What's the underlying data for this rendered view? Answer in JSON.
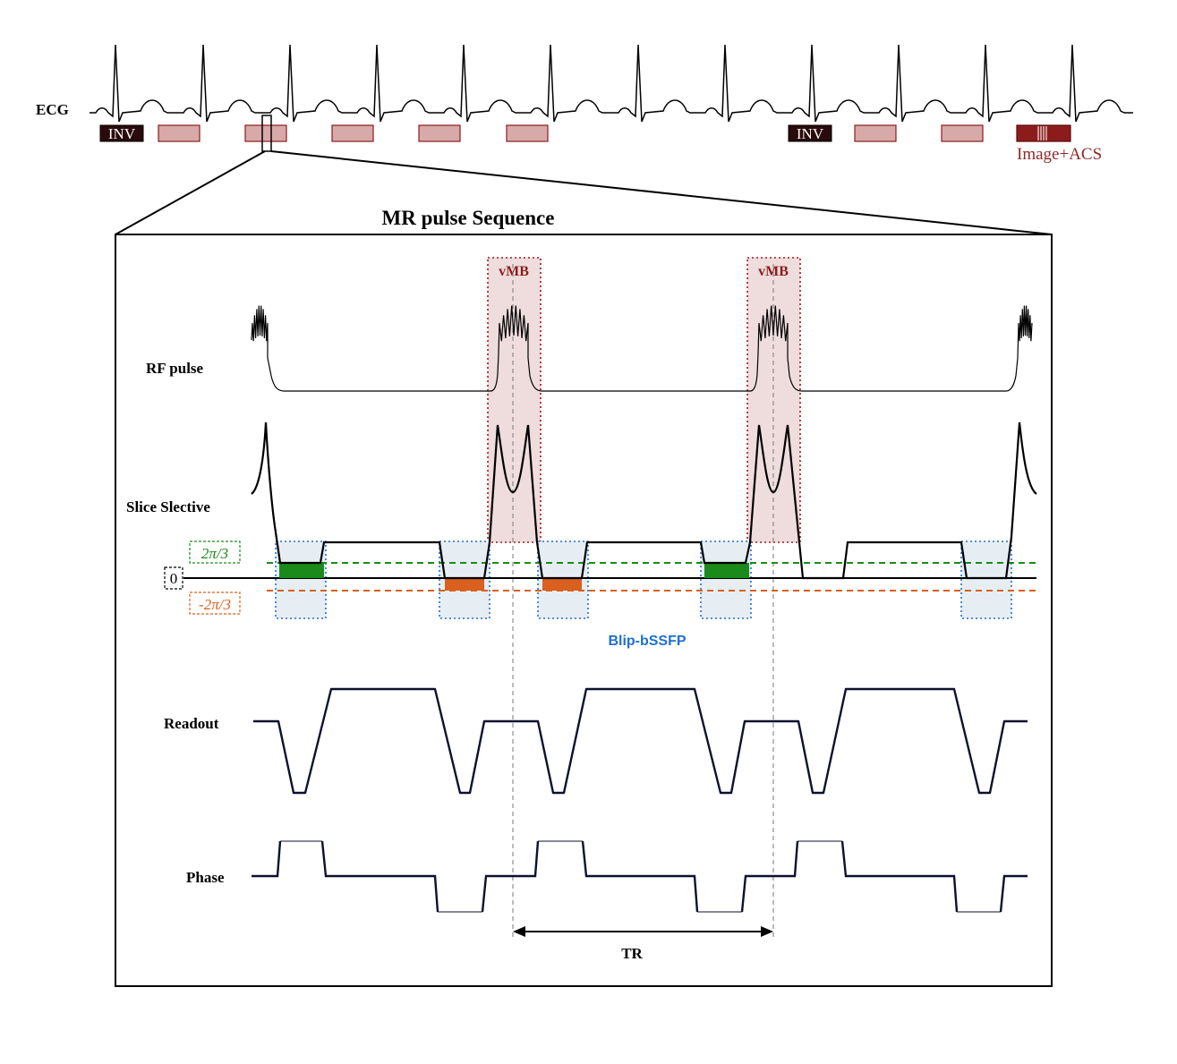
{
  "ecg": {
    "label": "ECG",
    "inv_label": "INV",
    "image_acs_label": "Image+ACS"
  },
  "sequence": {
    "title": "MR pulse Sequence",
    "rows": {
      "rf": "RF pulse",
      "slice": "Slice Slective",
      "readout": "Readout",
      "phase": "Phase"
    },
    "vmb_label": "vMB",
    "blip_label": "Blip-bSSFP",
    "tr_label": "TR",
    "phase_levels": {
      "positive": "2π/3",
      "zero": "0",
      "negative": "-2π/3"
    }
  },
  "colors": {
    "ink": "#000000",
    "navy": "#0d1030",
    "inv_box": "#2a0a0a",
    "readout_block_fill": "#d7a9a9",
    "readout_block_edge": "#8c1c1c",
    "image_block": "#8c1c1c",
    "image_text": "#8c2a2a",
    "vmb_fill": "#efdcdc",
    "vmb_edge": "#a01818",
    "blip_fill": "#e6eef4",
    "blip_edge": "#1f6fd0",
    "positive": "#1a8a1a",
    "negative": "#d9601e",
    "tr_guide": "#777777"
  }
}
